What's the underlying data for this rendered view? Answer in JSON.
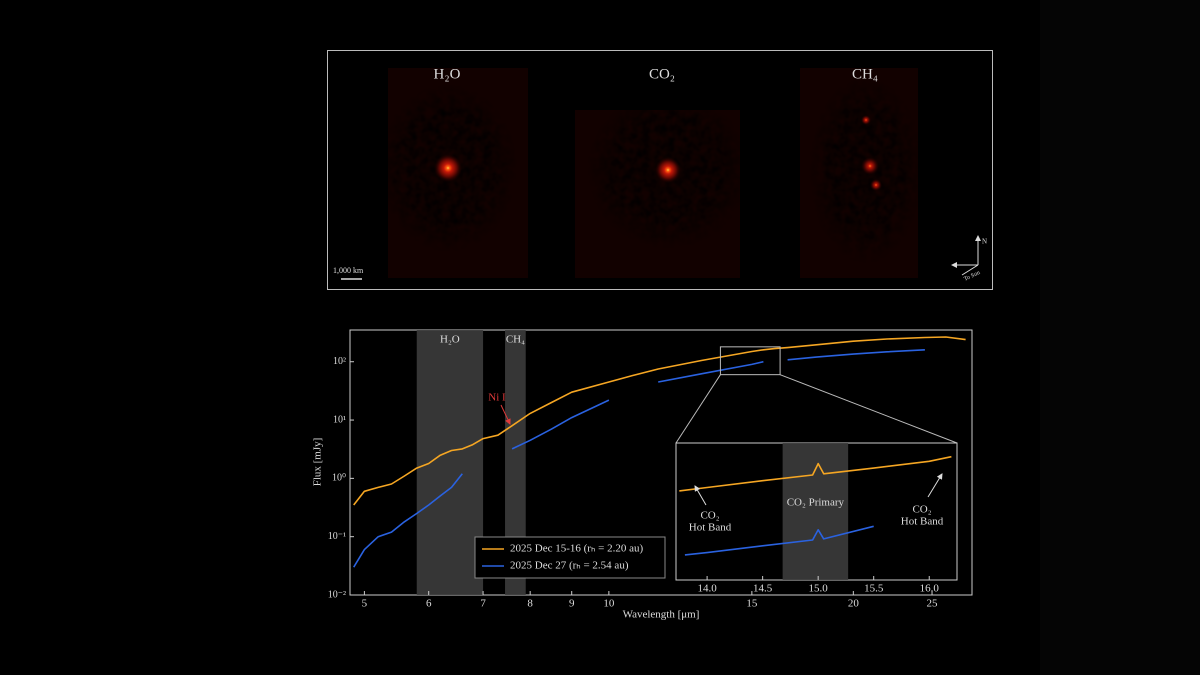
{
  "image_panel": {
    "labels": [
      "H₂O",
      "CO₂",
      "CH₄"
    ],
    "scale_bar": "1,000 km",
    "compass": {
      "north": "N",
      "sun": "To Sun"
    }
  },
  "chart_data": [
    {
      "type": "line",
      "xlabel": "Wavelength [μm]",
      "ylabel": "Flux [mJy]",
      "xscale": "log",
      "yscale": "log",
      "xlim": [
        4.8,
        28
      ],
      "ylim": [
        0.01,
        350
      ],
      "xticks": [
        5,
        6,
        7,
        8,
        9,
        10,
        15,
        20,
        25
      ],
      "yticks": [
        {
          "value": 0.01,
          "label": "10⁻²"
        },
        {
          "value": 0.1,
          "label": "10⁻¹"
        },
        {
          "value": 1,
          "label": "10⁰"
        },
        {
          "value": 10,
          "label": "10¹"
        },
        {
          "value": 100,
          "label": "10²"
        }
      ],
      "x": [
        4.85,
        5.0,
        5.2,
        5.4,
        5.6,
        5.8,
        6.0,
        6.2,
        6.4,
        6.6,
        6.8,
        7.0,
        7.3,
        7.6,
        8.0,
        8.5,
        9.0,
        10.0,
        10.7,
        11.5,
        13.0,
        15.0,
        15.5,
        16.0,
        16.6,
        18.0,
        20.0,
        22.0,
        24.5,
        26.0,
        27.5
      ],
      "series": [
        {
          "name": "2025 Dec 15-16 (rₕ = 2.20 au)",
          "color": "#f5a623",
          "values": [
            0.35,
            0.6,
            0.7,
            0.8,
            1.1,
            1.5,
            1.8,
            2.5,
            3.0,
            3.2,
            3.8,
            4.8,
            5.5,
            8.0,
            13,
            20,
            30,
            45,
            58,
            75,
            105,
            150,
            160,
            168,
            175,
            195,
            225,
            245,
            260,
            265,
            240
          ]
        },
        {
          "name": "2025 Dec 27 (rₕ = 2.54 au)",
          "color": "#2a62e0",
          "values": [
            0.03,
            0.06,
            0.1,
            0.12,
            0.18,
            0.25,
            0.35,
            0.5,
            0.7,
            1.2,
            null,
            null,
            null,
            3.2,
            4.5,
            7,
            11,
            22,
            null,
            45,
            62,
            90,
            100,
            null,
            108,
            120,
            135,
            148,
            160,
            null,
            null
          ]
        }
      ],
      "bands": [
        {
          "label": "H₂O",
          "range": [
            5.8,
            7.0
          ]
        },
        {
          "label": "CH₄",
          "range": [
            7.45,
            7.9
          ]
        }
      ],
      "band_color": "#3c3c3c",
      "annotation": "Ni I",
      "annotation_color": "#e03a3a",
      "legend": "lower center",
      "grid": false
    },
    {
      "type": "line",
      "xscale": "linear",
      "yscale": "linear",
      "xlim": [
        13.72,
        16.25
      ],
      "ylim": [
        60,
        180
      ],
      "xticks": [
        {
          "value": 14,
          "label": "14.0"
        },
        {
          "value": 14.5,
          "label": "14.5"
        },
        {
          "value": 15,
          "label": "15.0"
        },
        {
          "value": 15.5,
          "label": "15.5"
        },
        {
          "value": 16,
          "label": "16.0"
        }
      ],
      "series": [
        {
          "color": "#f5a623",
          "x": [
            13.75,
            14.0,
            14.5,
            14.95,
            15.0,
            15.05,
            15.5,
            16.0,
            16.2
          ],
          "values": [
            138,
            141,
            147,
            152,
            162,
            153,
            158,
            164,
            168
          ]
        },
        {
          "color": "#2a62e0",
          "x": [
            13.8,
            14.0,
            14.5,
            14.95,
            15.0,
            15.05,
            15.5
          ],
          "values": [
            82,
            84,
            90,
            95,
            104,
            96,
            107
          ]
        }
      ],
      "bands": [
        {
          "label": "CO₂ Primary",
          "range": [
            14.68,
            15.27
          ]
        }
      ],
      "band_color": "#3c3c3c",
      "annotations": [
        {
          "lines": [
            "CO₂",
            "Hot Band"
          ]
        },
        {
          "lines": [
            "CO₂",
            "Hot Band"
          ]
        }
      ]
    }
  ]
}
